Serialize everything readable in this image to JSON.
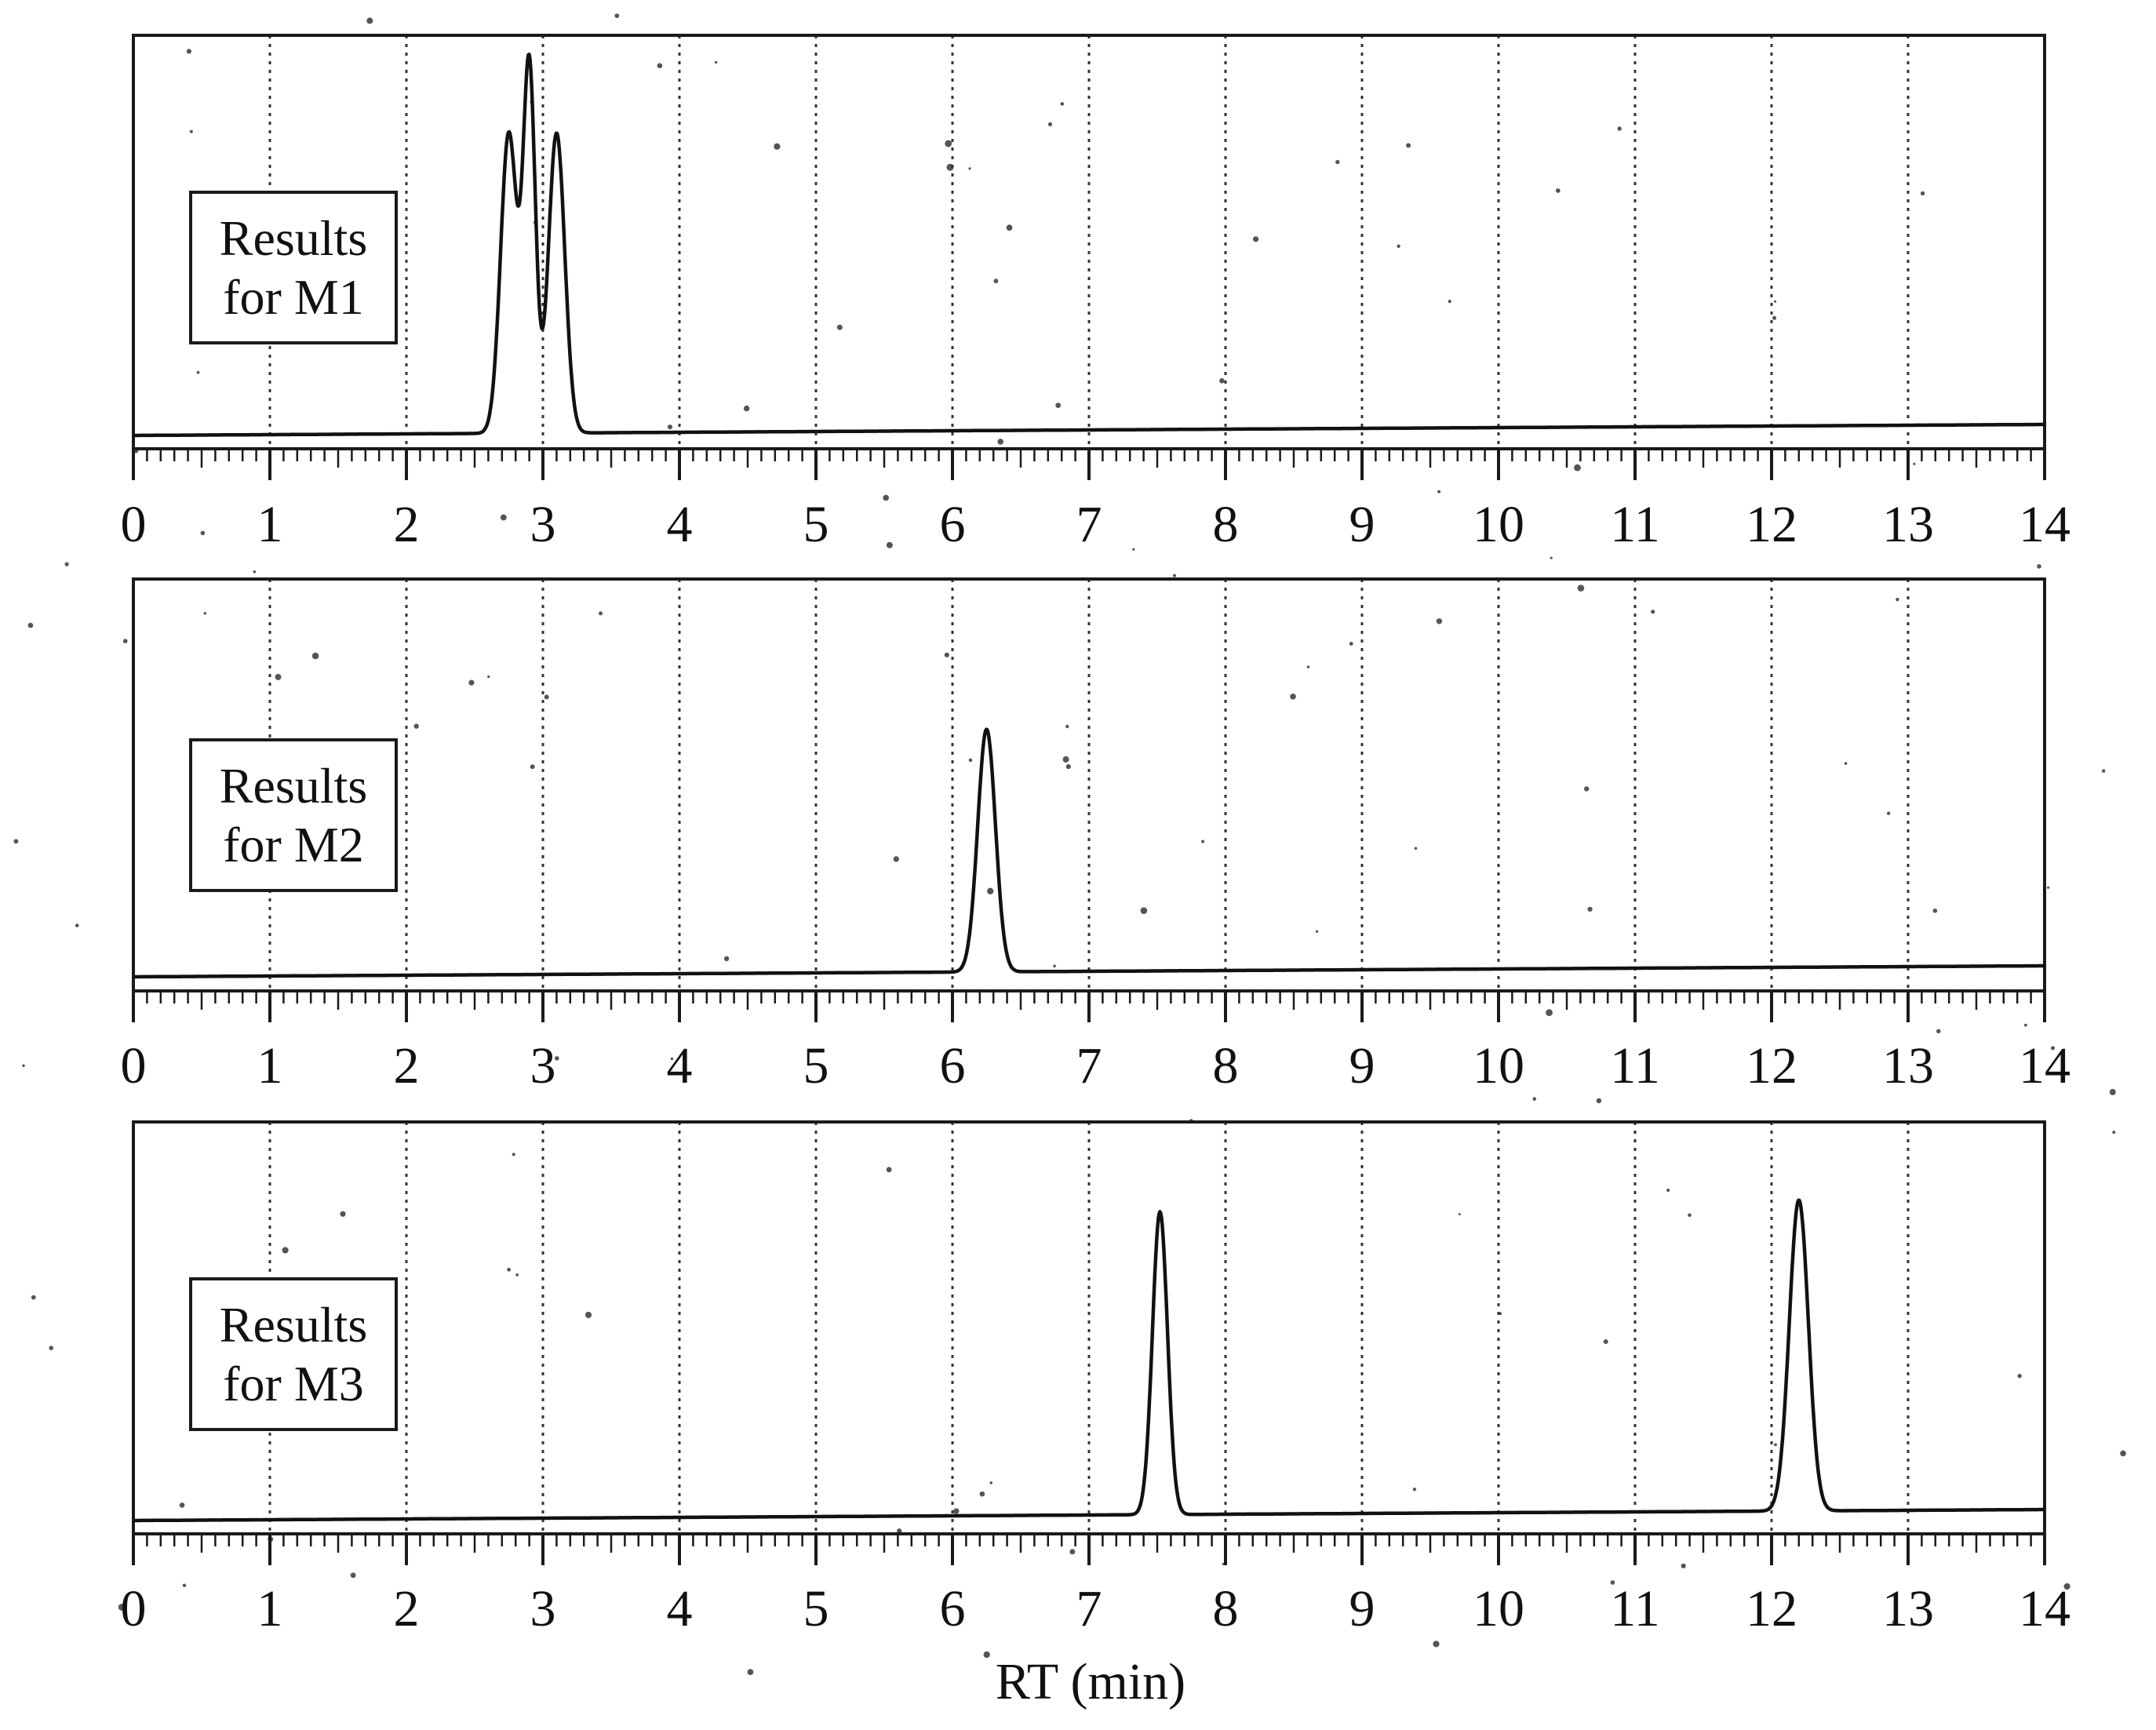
{
  "chart_data": {
    "type": "line",
    "title": "",
    "xlabel": "RT (min)",
    "ylabel": "",
    "xlim": [
      0,
      14
    ],
    "ylim": [
      0,
      1
    ],
    "grid": true,
    "x_ticks": [
      "0",
      "1",
      "2",
      "3",
      "4",
      "5",
      "6",
      "7",
      "8",
      "9",
      "10",
      "11",
      "12",
      "13",
      "14"
    ],
    "panels": [
      {
        "id": "m1",
        "legend": [
          "Results",
          "for M1"
        ],
        "peaks": [
          {
            "rt": 2.75,
            "height": 0.75,
            "sigma": 0.06
          },
          {
            "rt": 2.9,
            "height": 0.91,
            "sigma": 0.045
          },
          {
            "rt": 3.1,
            "height": 0.75,
            "sigma": 0.06
          }
        ]
      },
      {
        "id": "m2",
        "legend": [
          "Results",
          "for M2"
        ],
        "peaks": [
          {
            "rt": 6.25,
            "height": 0.61,
            "sigma": 0.065
          }
        ]
      },
      {
        "id": "m3",
        "legend": [
          "Results",
          "for M3"
        ],
        "peaks": [
          {
            "rt": 7.52,
            "height": 0.76,
            "sigma": 0.055
          },
          {
            "rt": 12.2,
            "height": 0.78,
            "sigma": 0.07
          }
        ]
      }
    ]
  }
}
